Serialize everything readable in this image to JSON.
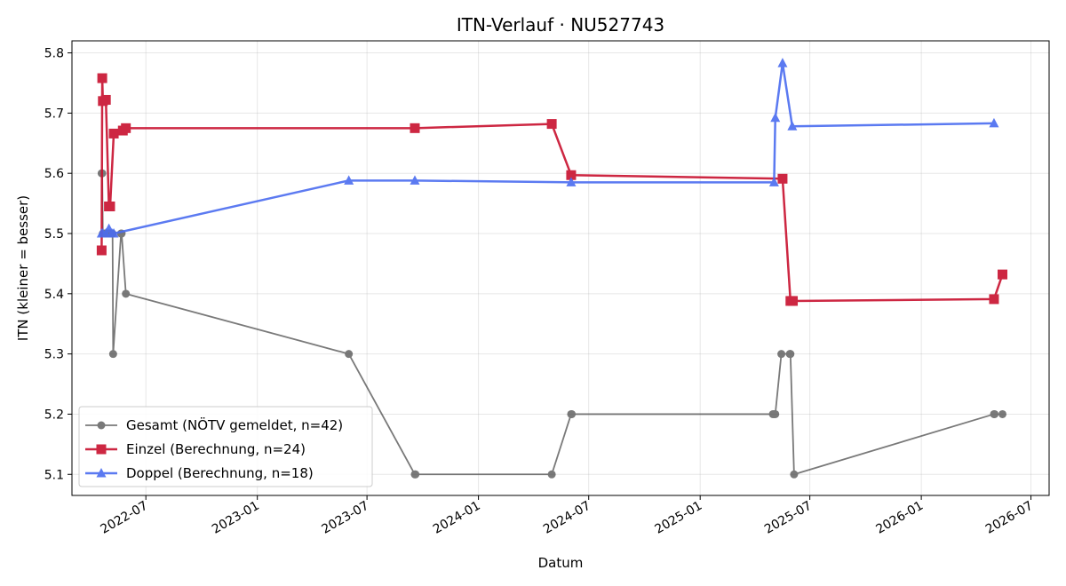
{
  "chart_data": {
    "type": "line",
    "title": "ITN-Verlauf · NU527743",
    "xlabel": "Datum",
    "ylabel": "ITN  (kleiner = besser)",
    "x_axis_kind": "date",
    "xlim": [
      "2022-03-01",
      "2026-07-31"
    ],
    "ylim": [
      5.065,
      5.82
    ],
    "x_ticks": [
      "2022-07-01",
      "2023-01-01",
      "2023-07-01",
      "2024-01-01",
      "2024-07-01",
      "2025-01-01",
      "2025-07-01",
      "2026-01-01",
      "2026-07-01"
    ],
    "x_tick_labels": [
      "2022-07",
      "2023-01",
      "2023-07",
      "2024-01",
      "2024-07",
      "2025-01",
      "2025-07",
      "2026-01",
      "2026-07"
    ],
    "y_ticks": [
      5.1,
      5.2,
      5.3,
      5.4,
      5.5,
      5.6,
      5.7,
      5.8
    ],
    "y_tick_labels": [
      "5.1",
      "5.2",
      "5.3",
      "5.4",
      "5.5",
      "5.6",
      "5.7",
      "5.8"
    ],
    "grid": true,
    "legend_position": "lower-left",
    "series": [
      {
        "name": "Gesamt (NÖTV gemeldet, n=42)",
        "color": "#4d4d4d",
        "marker": "circle",
        "x": [
          "2022-04-19",
          "2022-04-20",
          "2022-04-21",
          "2022-04-24",
          "2022-04-27",
          "2022-05-01",
          "2022-05-03",
          "2022-05-06",
          "2022-05-07",
          "2022-05-08",
          "2022-05-21",
          "2022-05-22",
          "2022-05-29",
          "2023-06-01",
          "2023-09-18",
          "2023-09-19",
          "2024-05-01",
          "2024-06-02",
          "2024-06-03",
          "2025-05-01",
          "2025-05-03",
          "2025-05-05",
          "2025-05-15",
          "2025-05-29",
          "2025-05-30",
          "2025-06-05",
          "2026-05-01",
          "2026-05-02",
          "2026-05-15"
        ],
        "y": [
          5.6,
          5.6,
          5.5,
          5.5,
          5.5,
          5.5,
          5.5,
          5.5,
          5.5,
          5.3,
          5.5,
          5.5,
          5.4,
          5.3,
          5.1,
          5.1,
          5.1,
          5.2,
          5.2,
          5.2,
          5.2,
          5.2,
          5.3,
          5.3,
          5.3,
          5.1,
          5.2,
          5.2,
          5.2
        ]
      },
      {
        "name": "Einzel (Berechnung, n=24)",
        "color": "#c8102e",
        "marker": "square",
        "x": [
          "2022-04-19",
          "2022-04-20",
          "2022-04-21",
          "2022-04-26",
          "2022-05-01",
          "2022-05-03",
          "2022-05-09",
          "2022-05-24",
          "2022-05-29",
          "2023-09-18",
          "2024-05-01",
          "2024-06-02",
          "2025-05-17",
          "2025-05-30",
          "2025-06-03",
          "2026-05-01",
          "2026-05-15"
        ],
        "y": [
          5.472,
          5.758,
          5.72,
          5.722,
          5.545,
          5.545,
          5.666,
          5.671,
          5.675,
          5.675,
          5.682,
          5.597,
          5.591,
          5.388,
          5.388,
          5.391,
          5.432
        ]
      },
      {
        "name": "Doppel (Berechnung, n=18)",
        "color": "#4a6cf0",
        "marker": "triangle",
        "x": [
          "2022-04-19",
          "2022-04-21",
          "2022-04-26",
          "2022-05-01",
          "2022-05-06",
          "2022-05-09",
          "2023-06-01",
          "2023-09-18",
          "2024-06-02",
          "2025-05-03",
          "2025-05-05",
          "2025-05-17",
          "2025-06-02",
          "2026-05-01"
        ],
        "y": [
          5.5,
          5.5,
          5.5,
          5.508,
          5.5,
          5.5,
          5.588,
          5.588,
          5.585,
          5.585,
          5.692,
          5.783,
          5.678,
          5.683
        ]
      }
    ]
  }
}
